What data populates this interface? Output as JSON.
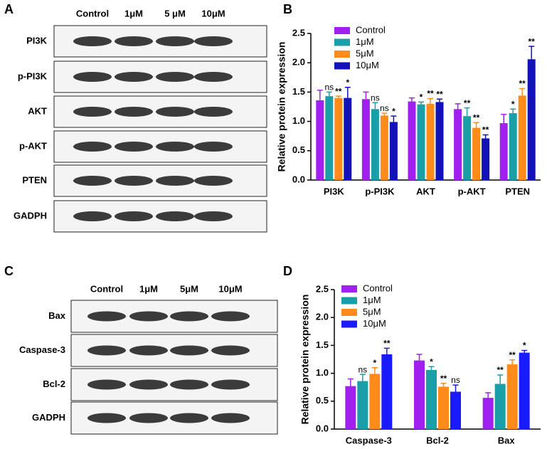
{
  "panel_labels": [
    "A",
    "B",
    "C",
    "D"
  ],
  "blots": [
    {
      "columns": [
        "Control",
        "1μM",
        "5 μM",
        "10μM"
      ],
      "rows": [
        "PI3K",
        "p-PI3K",
        "AKT",
        "p-AKT",
        "PTEN",
        "GADPH"
      ]
    },
    {
      "columns": [
        "Control",
        "1μM",
        "5μM",
        "10μM"
      ],
      "rows": [
        "Bax",
        "Caspase-3",
        "Bcl-2",
        "GADPH"
      ]
    }
  ],
  "chart_data": [
    {
      "type": "bar",
      "y_label": "Relative protein expression",
      "categories": [
        "PI3K",
        "p-PI3K",
        "AKT",
        "p-AKT",
        "PTEN"
      ],
      "ylim": [
        0,
        2.5
      ],
      "yticks": [
        {
          "value": 0,
          "label": "0.0"
        },
        0.5,
        {
          "value": 1,
          "label": "1.0"
        },
        1.5,
        {
          "value": 2,
          "label": "2.0"
        },
        2.5
      ],
      "series": [
        {
          "name": "Control",
          "color": "#a020f0",
          "values": [
            1.36,
            1.38,
            1.34,
            1.21,
            0.97
          ],
          "errors": [
            0.17,
            0.12,
            0.06,
            0.09,
            0.15
          ],
          "annotations": [
            null,
            null,
            null,
            null,
            null
          ]
        },
        {
          "name": "1μM",
          "color": "#1a9ea8",
          "values": [
            1.43,
            1.21,
            1.29,
            1.09,
            1.14
          ],
          "errors": [
            0.07,
            0.11,
            0.04,
            0.14,
            0.07
          ],
          "annotations": [
            "ns",
            "ns",
            "*",
            "**",
            "*"
          ]
        },
        {
          "name": "5μM",
          "color": "#ff8c1a",
          "values": [
            1.4,
            1.1,
            1.3,
            0.89,
            1.44
          ],
          "errors": [
            0.03,
            0.04,
            0.09,
            0.09,
            0.12
          ],
          "annotations": [
            "**",
            "ns",
            "**",
            "**",
            "**"
          ]
        },
        {
          "name": "10μM",
          "color": "#1212b8",
          "values": [
            1.4,
            0.99,
            1.33,
            0.71,
            2.06
          ],
          "errors": [
            0.18,
            0.1,
            0.05,
            0.06,
            0.22
          ],
          "annotations": [
            "*",
            "*",
            "**",
            "**",
            "**"
          ]
        }
      ]
    },
    {
      "type": "bar",
      "y_label": "Relative protein expression",
      "categories": [
        "Caspase-3",
        "Bcl-2",
        "Bax"
      ],
      "ylim": [
        0,
        2.5
      ],
      "yticks": [
        {
          "value": 0,
          "label": "0.0"
        },
        0.5,
        {
          "value": 1,
          "label": "1.0"
        },
        1.5,
        {
          "value": 2,
          "label": "2.0"
        },
        2.5
      ],
      "series": [
        {
          "name": "Control",
          "color": "#a020f0",
          "values": [
            0.77,
            1.23,
            0.56
          ],
          "errors": [
            0.13,
            0.11,
            0.09
          ],
          "annotations": [
            null,
            null,
            null
          ]
        },
        {
          "name": "1μM",
          "color": "#1a9ea8",
          "values": [
            0.86,
            1.06,
            0.81
          ],
          "errors": [
            0.12,
            0.06,
            0.16
          ],
          "annotations": [
            "ns",
            "*",
            "**"
          ]
        },
        {
          "name": "5μM",
          "color": "#ff8c1a",
          "values": [
            0.99,
            0.76,
            1.16
          ],
          "errors": [
            0.11,
            0.06,
            0.08
          ],
          "annotations": [
            "*",
            "**",
            "**"
          ]
        },
        {
          "name": "10μM",
          "color": "#1a1aff",
          "values": [
            1.34,
            0.67,
            1.37
          ],
          "errors": [
            0.11,
            0.12,
            0.04
          ],
          "annotations": [
            "**",
            "ns",
            "*"
          ]
        }
      ]
    }
  ]
}
